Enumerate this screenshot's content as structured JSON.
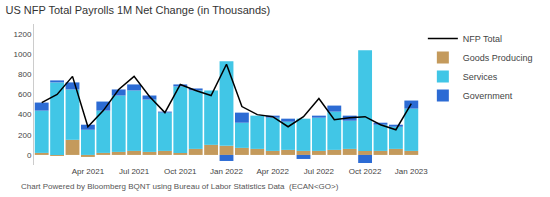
{
  "chart_data": {
    "type": "bar",
    "title": "US NFP Total Payrolls 1M Net Change (in Thousands)",
    "annotations": [
      "Chart Powered by Bloomberg BQNT using Bureau of Labor Statistics Data  (ECAN<GO>)"
    ],
    "categories": [
      null,
      null,
      null,
      "Apr 2021",
      null,
      null,
      "Jul 2021",
      null,
      null,
      "Oct 2021",
      null,
      null,
      "Jan 2022",
      null,
      null,
      "Apr 2022",
      null,
      null,
      "Jul 2022",
      null,
      null,
      "Oct 2022",
      null,
      null,
      "Jan 2023"
    ],
    "series": [
      {
        "name": "NFP Total",
        "type": "line",
        "color": "#000000",
        "values": [
          520,
          600,
          780,
          280,
          440,
          650,
          780,
          580,
          420,
          700,
          640,
          590,
          900,
          480,
          400,
          380,
          280,
          380,
          560,
          350,
          370,
          380,
          300,
          250,
          510
        ]
      },
      {
        "name": "Goods Producing",
        "type": "bar",
        "color": "#c49a5c",
        "values": [
          20,
          -10,
          150,
          -20,
          20,
          30,
          40,
          30,
          40,
          20,
          60,
          100,
          90,
          70,
          60,
          40,
          50,
          40,
          40,
          50,
          60,
          40,
          40,
          60,
          40
        ]
      },
      {
        "name": "Services",
        "type": "bar",
        "color": "#41c6e6",
        "values": [
          420,
          720,
          500,
          250,
          420,
          560,
          600,
          520,
          380,
          660,
          580,
          540,
          840,
          250,
          330,
          330,
          280,
          320,
          330,
          380,
          280,
          1000,
          260,
          220,
          420
        ]
      },
      {
        "name": "Government",
        "type": "bar",
        "color": "#2c6bd4",
        "values": [
          80,
          20,
          70,
          50,
          90,
          60,
          60,
          40,
          10,
          20,
          20,
          0,
          -60,
          100,
          0,
          20,
          30,
          -40,
          20,
          60,
          50,
          -80,
          20,
          20,
          80
        ]
      }
    ],
    "ylim": [
      -100,
      1300
    ],
    "yticks": [
      0,
      200,
      400,
      600,
      800,
      1000,
      1200
    ],
    "stacked": true,
    "grid": false,
    "legend": "right"
  }
}
